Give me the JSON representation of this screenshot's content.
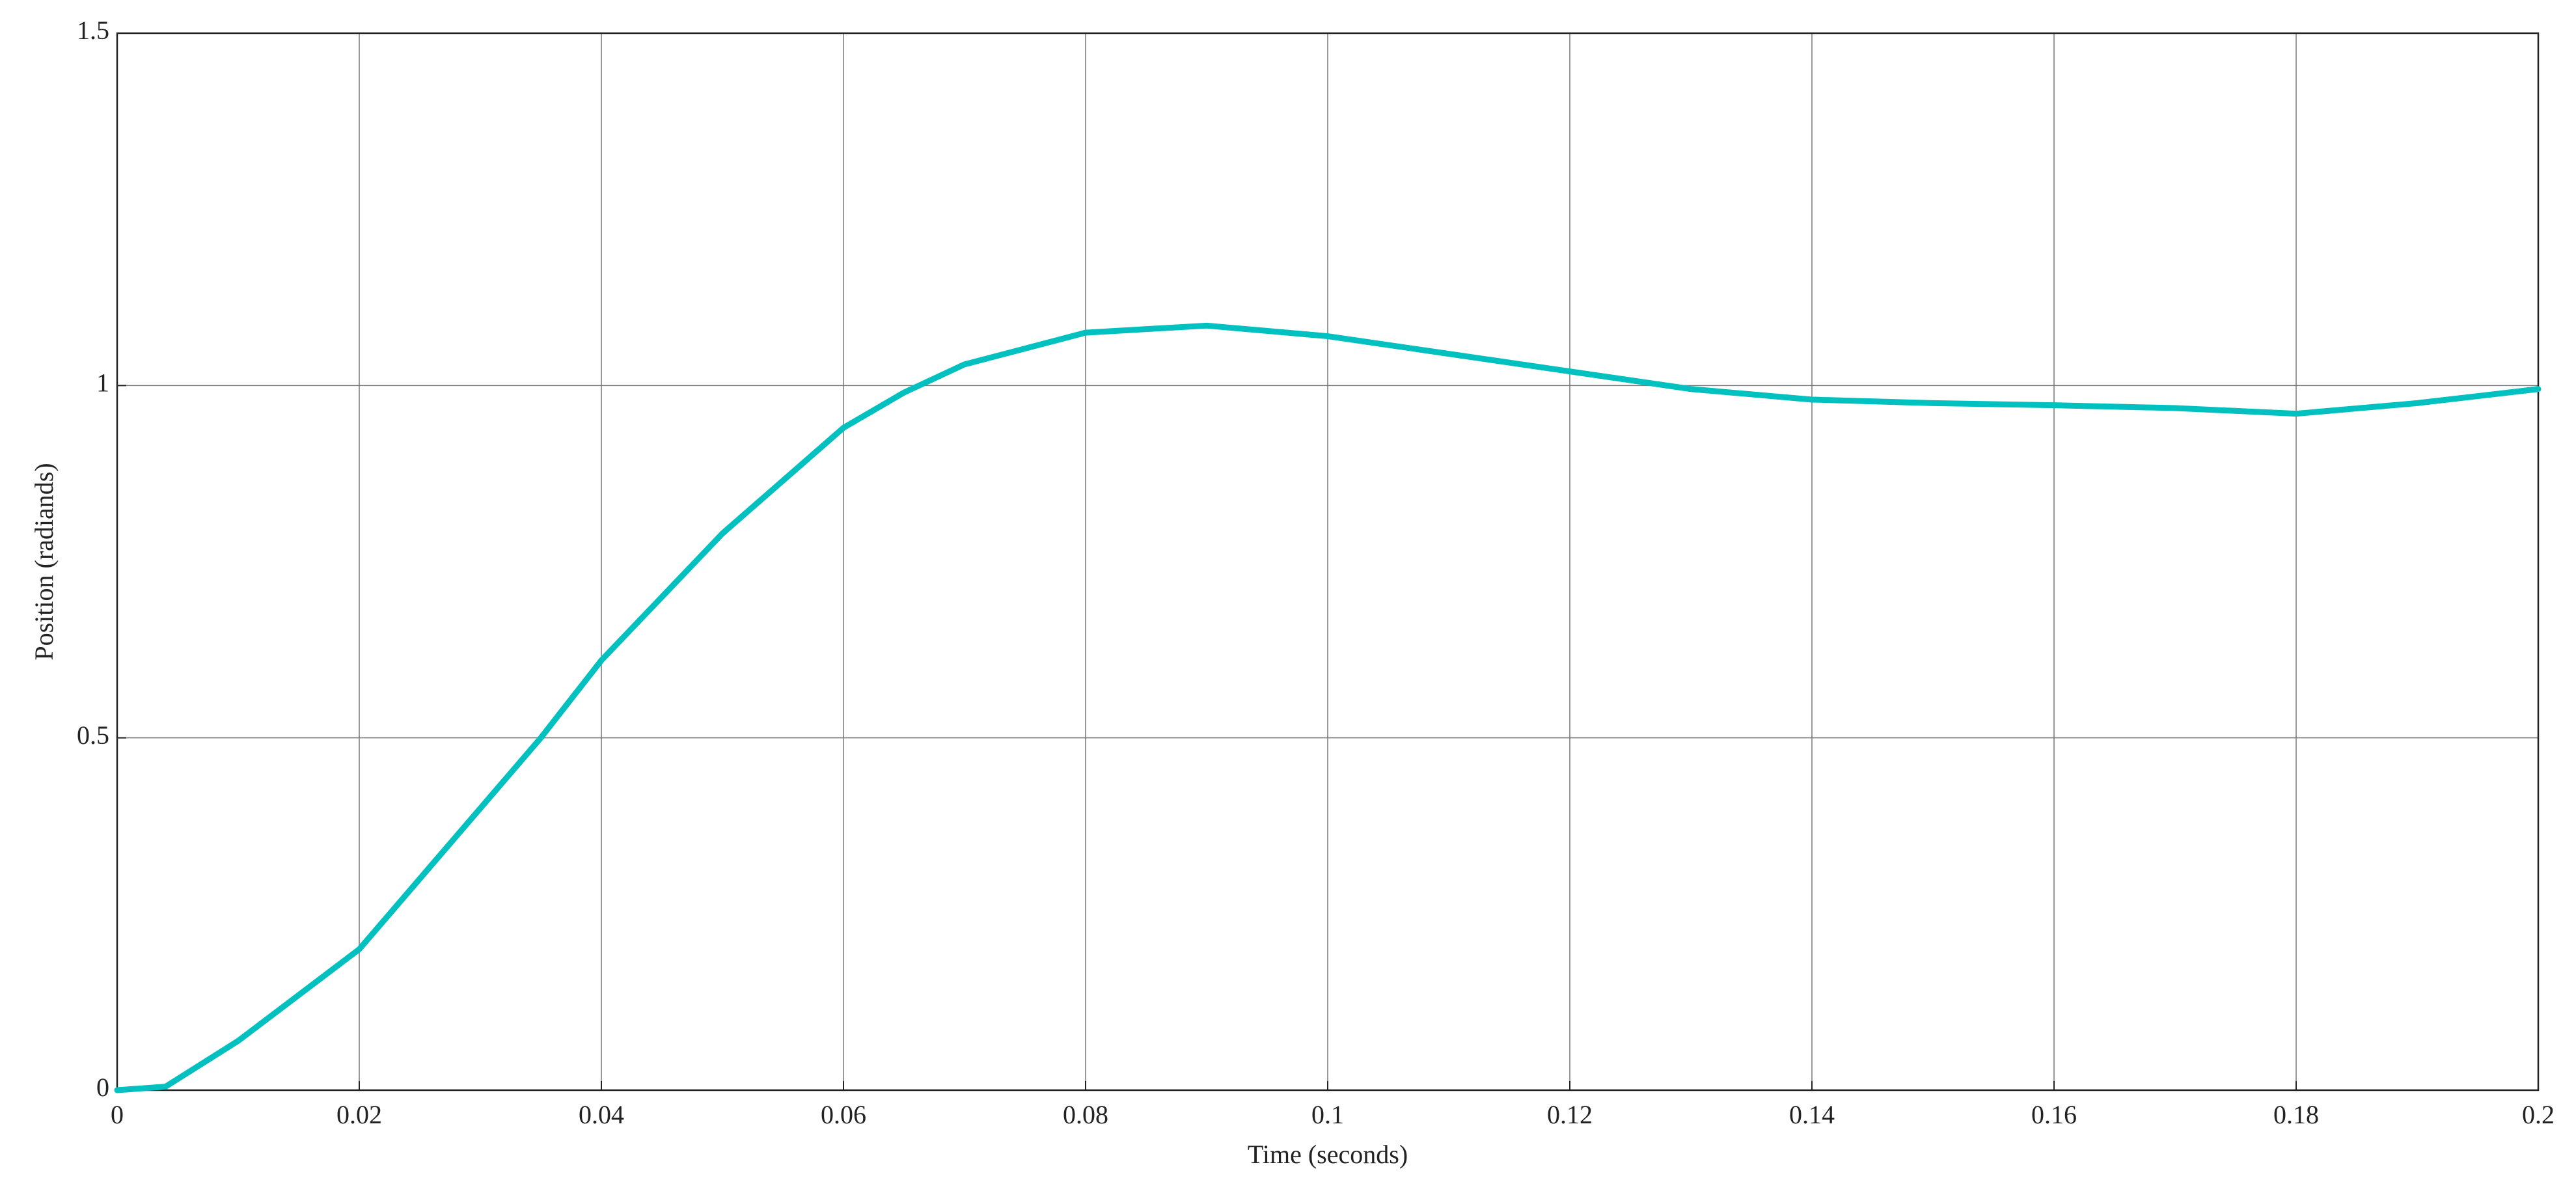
{
  "chart_data": {
    "type": "line",
    "xlabel": "Time (seconds)",
    "ylabel": "Position (radiands)",
    "x": [
      0,
      0.004,
      0.01,
      0.02,
      0.03,
      0.035,
      0.04,
      0.05,
      0.06,
      0.065,
      0.07,
      0.08,
      0.09,
      0.1,
      0.11,
      0.12,
      0.13,
      0.14,
      0.15,
      0.16,
      0.17,
      0.18,
      0.19,
      0.2
    ],
    "series": [
      {
        "color": "#00c0c0",
        "values": [
          0,
          0.005,
          0.07,
          0.2,
          0.4,
          0.5,
          0.61,
          0.79,
          0.94,
          0.99,
          1.03,
          1.075,
          1.085,
          1.07,
          1.045,
          1.02,
          0.995,
          0.98,
          0.975,
          0.972,
          0.968,
          0.96,
          0.975,
          0.995
        ]
      }
    ],
    "xlim": [
      0,
      0.2
    ],
    "ylim": [
      0,
      1.5
    ],
    "xticks": [
      0,
      0.02,
      0.04,
      0.06,
      0.08,
      0.1,
      0.12,
      0.14,
      0.16,
      0.18,
      0.2
    ],
    "yticks": [
      0,
      0.5,
      1,
      1.5
    ],
    "grid": true
  }
}
